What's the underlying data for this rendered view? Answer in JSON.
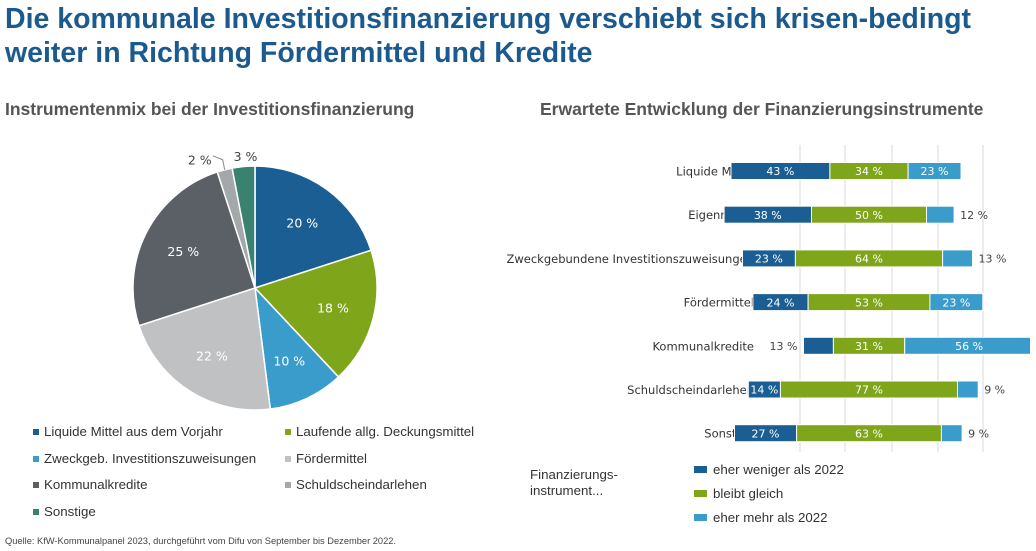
{
  "title": "Die kommunale Investitionsfinanzierung verschiebt sich krisen-bedingt weiter in Richtung Fördermittel und Kredite",
  "source": "Quelle: KfW-Kommunalpanel 2023, durchgeführt vom Difu von September bis Dezember 2022.",
  "colors": {
    "liquide": "#1b5e93",
    "laufende": "#7fa51b",
    "zweck": "#3a9ccb",
    "foerder": "#bfc1c3",
    "kommunal": "#5b6067",
    "schuld": "#a5a8ab",
    "sonstige": "#3a8270",
    "weniger": "#1b5e93",
    "gleich": "#7fa51b",
    "mehr": "#3a9ccb"
  },
  "chart_data": [
    {
      "type": "pie",
      "title": "Instrumentenmix bei der Investitionsfinanzierung",
      "slices": [
        {
          "label": "Liquide Mittel aus dem Vorjahr",
          "value": 20,
          "value_label": "20 %",
          "color": "#1b5e93"
        },
        {
          "label": "Laufende allg. Deckungsmittel",
          "value": 18,
          "value_label": "18 %",
          "color": "#7fa51b"
        },
        {
          "label": "Zweckgeb. Investitionszuweisungen",
          "value": 10,
          "value_label": "10 %",
          "color": "#3a9ccb"
        },
        {
          "label": "Fördermittel",
          "value": 22,
          "value_label": "22 %",
          "color": "#bfc1c3"
        },
        {
          "label": "Kommunalkredite",
          "value": 25,
          "value_label": "25 %",
          "color": "#5b6067"
        },
        {
          "label": "Schuldscheindarlehen",
          "value": 2,
          "value_label": "2 %",
          "color": "#a5a8ab"
        },
        {
          "label": "Sonstige",
          "value": 3,
          "value_label": "3 %",
          "color": "#3a8270"
        }
      ],
      "legend_placement": "bottom"
    },
    {
      "type": "bar",
      "orientation": "horizontal-diverging-stacked",
      "title": "Erwartete Entwicklung der Finanzierungsinstrumente",
      "categories": [
        "Liquide Mittel",
        "Eigenmittel",
        "Zweckgebundene Investitionszuweisungen",
        "Fördermittel",
        "Kommunalkredite",
        "Schuldscheindarlehen",
        "Sonstige"
      ],
      "series": [
        {
          "name": "eher weniger als 2022",
          "values": [
            43,
            38,
            23,
            24,
            13,
            14,
            27
          ],
          "labels": [
            "43 %",
            "38 %",
            "23 %",
            "24 %",
            "13 %",
            "14 %",
            "27 %"
          ],
          "label_inside": [
            true,
            true,
            true,
            true,
            false,
            true,
            true
          ]
        },
        {
          "name": "bleibt gleich",
          "values": [
            34,
            50,
            64,
            53,
            31,
            77,
            63
          ],
          "labels": [
            "34 %",
            "50 %",
            "64 %",
            "53 %",
            "31 %",
            "77 %",
            "63 %"
          ],
          "label_inside": [
            true,
            true,
            true,
            true,
            true,
            true,
            true
          ]
        },
        {
          "name": "eher mehr als 2022",
          "values": [
            23,
            12,
            13,
            23,
            56,
            9,
            9
          ],
          "labels": [
            "23 %",
            "12 %",
            "13 %",
            "23 %",
            "56 %",
            "9 %",
            "9 %"
          ],
          "label_inside": [
            true,
            false,
            false,
            true,
            true,
            false,
            false
          ]
        }
      ],
      "legend_title": "Finanzierungs-instrument...",
      "legend_placement": "bottom",
      "grid": true
    }
  ]
}
